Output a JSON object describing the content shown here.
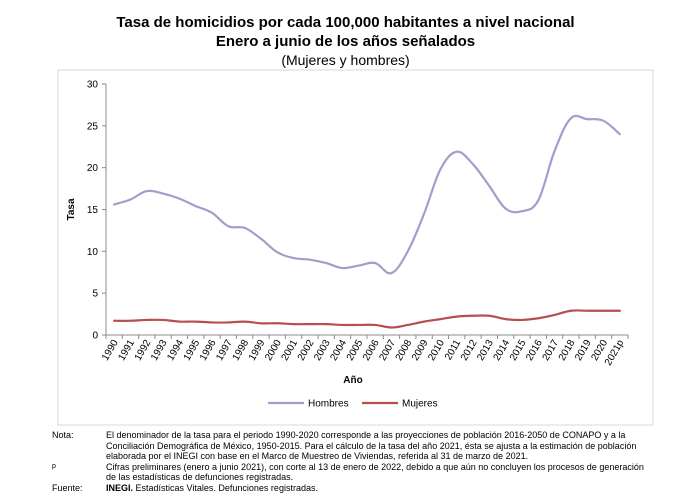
{
  "header": {
    "title_line1": "Tasa de homicidios por cada 100,000 habitantes a nivel nacional",
    "title_line2": "Enero a junio de los años señalados",
    "subtitle": "(Mujeres y hombres)"
  },
  "chart_data": {
    "type": "line",
    "title": "Tasa de homicidios por cada 100,000 habitantes a nivel nacional",
    "xlabel": "Año",
    "ylabel": "Tasa",
    "ylim": [
      0,
      30
    ],
    "yticks": [
      0,
      5,
      10,
      15,
      20,
      25,
      30
    ],
    "grid": false,
    "legend_position": "bottom",
    "categories": [
      "1990",
      "1991",
      "1992",
      "1993",
      "1994",
      "1995",
      "1996",
      "1997",
      "1998",
      "1999",
      "2000",
      "2001",
      "2002",
      "2003",
      "2004",
      "2005",
      "2006",
      "2007",
      "2008",
      "2009",
      "2010",
      "2011",
      "2012",
      "2013",
      "2014",
      "2015",
      "2016",
      "2017",
      "2018",
      "2019",
      "2020",
      "2021p"
    ],
    "series": [
      {
        "name": "Hombres",
        "color": "#A99BC9",
        "values": [
          15.6,
          16.2,
          17.2,
          16.9,
          16.3,
          15.4,
          14.6,
          13.0,
          12.8,
          11.5,
          9.9,
          9.2,
          9.0,
          8.6,
          8.0,
          8.3,
          8.6,
          7.4,
          10.0,
          14.5,
          19.8,
          21.9,
          20.4,
          17.8,
          15.1,
          14.8,
          16.1,
          22.0,
          25.9,
          25.8,
          25.6,
          24.0
        ]
      },
      {
        "name": "Mujeres",
        "color": "#B5504D",
        "values": [
          1.7,
          1.7,
          1.8,
          1.8,
          1.6,
          1.6,
          1.5,
          1.5,
          1.6,
          1.4,
          1.4,
          1.3,
          1.3,
          1.3,
          1.2,
          1.2,
          1.2,
          0.9,
          1.2,
          1.6,
          1.9,
          2.2,
          2.3,
          2.3,
          1.9,
          1.8,
          2.0,
          2.4,
          2.9,
          2.9,
          2.9,
          2.9
        ]
      }
    ]
  },
  "notes": [
    {
      "key": "Nota:",
      "text": "El denominador de la tasa para el periodo 1990-2020 corresponde a las proyecciones de población 2016-2050 de CONAPO y a la Conciliación Demográfica de México, 1950-2015. Para el cálculo de la tasa del año 2021, ésta se ajusta a la estimación de población elaborada por el INEGI con base en el Marco de Muestreo de Viviendas, referida al 31 de marzo de 2021."
    },
    {
      "key": "p",
      "text": "Cifras preliminares (enero a junio 2021), con corte al 13 de enero de 2022, debido a que aún no concluyen los procesos de generación de las estadísticas de defunciones registradas."
    }
  ],
  "source": {
    "key": "Fuente:",
    "org": "INEGI.",
    "text": "Estadísticas Vitales. Defunciones registradas."
  }
}
